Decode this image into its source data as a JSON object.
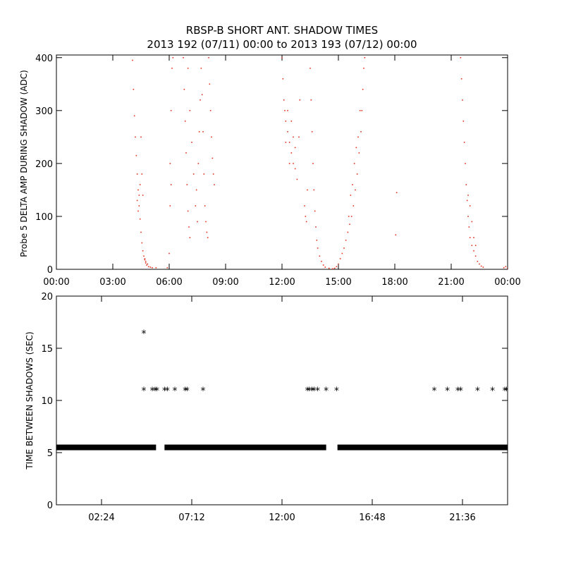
{
  "chart_data": [
    {
      "type": "scatter",
      "title": "RBSP-B SHORT ANT. SHADOW TIMES",
      "subtitle": "2013 192 (07/11) 00:00 to 2013 193 (07/12) 00:00",
      "ylabel": "Probe 5 DELTA AMP DURING SHADOW (ADC)",
      "xlabel": "",
      "x_unit": "hours",
      "xlim": [
        0,
        24
      ],
      "ylim": [
        0,
        405
      ],
      "xticks": [
        0,
        3,
        6,
        9,
        12,
        15,
        18,
        21,
        24
      ],
      "xtick_labels": [
        "00:00",
        "03:00",
        "06:00",
        "09:00",
        "12:00",
        "15:00",
        "18:00",
        "21:00",
        "00:00"
      ],
      "yticks": [
        0,
        100,
        200,
        300,
        400
      ],
      "ytick_labels": [
        "0",
        "100",
        "200",
        "300",
        "400"
      ],
      "color": "#e8321e",
      "series": [
        {
          "points": [
            [
              4.05,
              395
            ],
            [
              4.1,
              340
            ],
            [
              4.15,
              290
            ],
            [
              4.2,
              250
            ],
            [
              4.25,
              215
            ],
            [
              4.3,
              180
            ],
            [
              4.35,
              150
            ],
            [
              4.4,
              120
            ],
            [
              4.45,
              95
            ],
            [
              4.5,
              70
            ],
            [
              4.55,
              50
            ],
            [
              4.6,
              35
            ],
            [
              4.65,
              25
            ],
            [
              4.7,
              18
            ],
            [
              4.75,
              12
            ],
            [
              4.8,
              8
            ],
            [
              4.9,
              5
            ],
            [
              5.0,
              4
            ],
            [
              5.1,
              3
            ],
            [
              5.3,
              3
            ],
            [
              4.3,
              130
            ],
            [
              4.35,
              110
            ],
            [
              4.4,
              140
            ],
            [
              4.45,
              160
            ],
            [
              4.5,
              250
            ],
            [
              4.55,
              180
            ],
            [
              4.6,
              140
            ],
            [
              4.7,
              20
            ],
            [
              4.75,
              15
            ],
            [
              4.85,
              10
            ],
            [
              5.9,
              3
            ],
            [
              6.0,
              30
            ],
            [
              6.05,
              200
            ],
            [
              6.1,
              300
            ],
            [
              6.15,
              380
            ],
            [
              6.2,
              400
            ],
            [
              6.1,
              160
            ],
            [
              6.05,
              120
            ],
            [
              6.75,
              400
            ],
            [
              6.8,
              340
            ],
            [
              6.85,
              280
            ],
            [
              6.9,
              220
            ],
            [
              6.95,
              160
            ],
            [
              7.0,
              110
            ],
            [
              7.05,
              80
            ],
            [
              7.1,
              60
            ],
            [
              7.0,
              380
            ],
            [
              7.1,
              300
            ],
            [
              7.2,
              240
            ],
            [
              7.3,
              180
            ],
            [
              7.4,
              120
            ],
            [
              7.5,
              90
            ],
            [
              7.45,
              150
            ],
            [
              7.55,
              200
            ],
            [
              7.6,
              260
            ],
            [
              7.65,
              320
            ],
            [
              7.7,
              380
            ],
            [
              7.75,
              330
            ],
            [
              7.8,
              260
            ],
            [
              7.85,
              180
            ],
            [
              7.9,
              120
            ],
            [
              7.95,
              90
            ],
            [
              8.0,
              70
            ],
            [
              8.05,
              60
            ],
            [
              8.1,
              400
            ],
            [
              8.15,
              350
            ],
            [
              8.2,
              300
            ],
            [
              8.25,
              250
            ],
            [
              8.3,
              210
            ],
            [
              8.35,
              180
            ],
            [
              8.4,
              160
            ],
            [
              12.0,
              400
            ],
            [
              12.05,
              360
            ],
            [
              12.1,
              320
            ],
            [
              12.15,
              300
            ],
            [
              12.2,
              280
            ],
            [
              12.3,
              260
            ],
            [
              12.4,
              240
            ],
            [
              12.5,
              220
            ],
            [
              12.6,
              200
            ],
            [
              12.7,
              190
            ],
            [
              12.8,
              170
            ],
            [
              12.3,
              300
            ],
            [
              12.5,
              280
            ],
            [
              12.6,
              250
            ],
            [
              12.7,
              230
            ],
            [
              12.2,
              240
            ],
            [
              12.4,
              200
            ],
            [
              12.9,
              250
            ],
            [
              12.95,
              320
            ],
            [
              13.2,
              120
            ],
            [
              13.25,
              100
            ],
            [
              13.3,
              90
            ],
            [
              13.35,
              150
            ],
            [
              13.5,
              380
            ],
            [
              13.55,
              320
            ],
            [
              13.6,
              260
            ],
            [
              13.65,
              200
            ],
            [
              13.7,
              150
            ],
            [
              13.75,
              110
            ],
            [
              13.8,
              80
            ],
            [
              13.85,
              55
            ],
            [
              13.9,
              40
            ],
            [
              14.0,
              25
            ],
            [
              14.1,
              15
            ],
            [
              14.2,
              8
            ],
            [
              14.3,
              4
            ],
            [
              14.5,
              2
            ],
            [
              14.7,
              1
            ],
            [
              14.8,
              2
            ],
            [
              14.9,
              5
            ],
            [
              15.0,
              10
            ],
            [
              15.1,
              20
            ],
            [
              15.2,
              30
            ],
            [
              15.3,
              40
            ],
            [
              15.4,
              55
            ],
            [
              15.5,
              70
            ],
            [
              15.6,
              85
            ],
            [
              15.7,
              100
            ],
            [
              15.8,
              120
            ],
            [
              15.9,
              150
            ],
            [
              16.0,
              180
            ],
            [
              16.1,
              220
            ],
            [
              16.2,
              260
            ],
            [
              16.25,
              300
            ],
            [
              16.3,
              340
            ],
            [
              16.35,
              380
            ],
            [
              16.4,
              400
            ],
            [
              15.55,
              100
            ],
            [
              15.65,
              140
            ],
            [
              15.75,
              160
            ],
            [
              15.85,
              200
            ],
            [
              15.95,
              230
            ],
            [
              16.05,
              250
            ],
            [
              16.15,
              300
            ],
            [
              18.1,
              145
            ],
            [
              18.05,
              65
            ],
            [
              21.5,
              400
            ],
            [
              21.55,
              360
            ],
            [
              21.6,
              320
            ],
            [
              21.65,
              280
            ],
            [
              21.7,
              240
            ],
            [
              21.75,
              200
            ],
            [
              21.8,
              160
            ],
            [
              21.85,
              130
            ],
            [
              21.9,
              100
            ],
            [
              21.95,
              80
            ],
            [
              22.0,
              60
            ],
            [
              22.1,
              45
            ],
            [
              22.2,
              35
            ],
            [
              22.3,
              25
            ],
            [
              22.4,
              15
            ],
            [
              22.5,
              10
            ],
            [
              22.6,
              6
            ],
            [
              22.7,
              4
            ],
            [
              21.9,
              140
            ],
            [
              22.0,
              120
            ],
            [
              22.1,
              90
            ],
            [
              22.2,
              60
            ],
            [
              22.3,
              45
            ],
            [
              23.8,
              3
            ],
            [
              23.9,
              5
            ],
            [
              24.0,
              2
            ]
          ]
        }
      ]
    },
    {
      "type": "scatter",
      "title": "",
      "ylabel": "TIME BETWEEN SHADOWS (SEC)",
      "xlabel": "",
      "x_unit": "hours",
      "xlim": [
        0,
        24
      ],
      "ylim": [
        0,
        20
      ],
      "xticks": [
        2.4,
        7.2,
        12.0,
        16.8,
        21.6
      ],
      "xtick_labels": [
        "02:24",
        "07:12",
        "12:00",
        "16:48",
        "21:36"
      ],
      "yticks": [
        0,
        5,
        10,
        15,
        20
      ],
      "ytick_labels": [
        "0",
        "5",
        "10",
        "15",
        "20"
      ],
      "marker": "*",
      "color": "#000000",
      "baseline": {
        "y": 5.5,
        "segments": [
          [
            0.0,
            5.3
          ],
          [
            5.75,
            14.35
          ],
          [
            14.95,
            24.0
          ]
        ]
      },
      "series": [
        {
          "points": [
            [
              4.65,
              16.5
            ],
            [
              4.65,
              11.0
            ],
            [
              5.1,
              11.0
            ],
            [
              5.25,
              11.0
            ],
            [
              5.35,
              11.0
            ],
            [
              5.75,
              11.0
            ],
            [
              5.9,
              11.0
            ],
            [
              6.3,
              11.0
            ],
            [
              6.85,
              11.0
            ],
            [
              6.95,
              11.0
            ],
            [
              7.8,
              11.0
            ],
            [
              13.35,
              11.0
            ],
            [
              13.45,
              11.0
            ],
            [
              13.6,
              11.0
            ],
            [
              13.7,
              11.0
            ],
            [
              13.9,
              11.0
            ],
            [
              14.35,
              11.0
            ],
            [
              14.9,
              11.0
            ],
            [
              20.1,
              11.0
            ],
            [
              20.8,
              11.0
            ],
            [
              21.35,
              11.0
            ],
            [
              21.5,
              11.0
            ],
            [
              22.4,
              11.0
            ],
            [
              23.2,
              11.0
            ],
            [
              23.85,
              11.0
            ],
            [
              23.95,
              11.0
            ]
          ]
        }
      ]
    }
  ]
}
